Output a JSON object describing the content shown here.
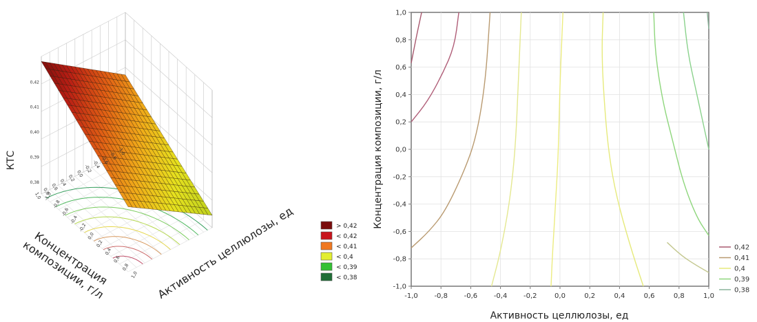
{
  "chart_data": [
    {
      "type": "surface",
      "zlabel": "КТС",
      "xlabel": "Активность целлюлозы, ед",
      "ylabel": "Концентрация композиции, г/л",
      "ztick_labels": [
        "0,42",
        "0,41",
        "0,40",
        "0,39",
        "0,38"
      ],
      "xtick_labels": [
        "-1,0",
        "-0,8",
        "-0,6",
        "-0,4",
        "-0,2",
        "0,0",
        "0,2",
        "0,4",
        "0,6",
        "0,8",
        "1,0"
      ],
      "ytick_labels": [
        "-1,0",
        "-0,8",
        "-0,6",
        "-0,4",
        "-0,2",
        "0,0",
        "0,2",
        "0,4",
        "0,6",
        "0,8",
        "1,0"
      ],
      "xlim": [
        -1,
        1
      ],
      "ylim": [
        -1,
        1
      ],
      "zlim": [
        0.375,
        0.43
      ],
      "corner_values": {
        "x_min_y_max": 0.428,
        "x_max_y_max": 0.401,
        "x_min_y_min": 0.405,
        "x_max_y_min": 0.38
      },
      "legend": {
        "placement": "right of surface plot",
        "entries": [
          {
            "label": "> 0,42",
            "color": "#7a0c0c"
          },
          {
            "label": "< 0,42",
            "color": "#c8141c"
          },
          {
            "label": "< 0,41",
            "color": "#f07820"
          },
          {
            "label": "< 0,4",
            "color": "#e2ee30"
          },
          {
            "label": "< 0,39",
            "color": "#33c133"
          },
          {
            "label": "< 0,38",
            "color": "#1f6e36"
          }
        ]
      }
    },
    {
      "type": "contour",
      "xlabel": "Активность целлюлозы, ед",
      "ylabel": "Концентрация композиции, г/л",
      "xlim": [
        -1,
        1
      ],
      "ylim": [
        -1,
        1
      ],
      "xticks": [
        "-1,0",
        "-0,8",
        "-0,6",
        "-0,4",
        "-0,2",
        "0,0",
        "0,2",
        "0,4",
        "0,6",
        "0,8",
        "1,0"
      ],
      "yticks": [
        "1,0",
        "0,8",
        "0,6",
        "0,4",
        "0,2",
        "0,0",
        "-0,2",
        "-0,4",
        "-0,6",
        "-0,8",
        "-1,0"
      ],
      "grid": true,
      "legend_placement": "right-bottom",
      "series": [
        {
          "name": "0,42",
          "color": "#a8586e",
          "points": [
            [
              -0.93,
              1.0
            ],
            [
              -0.96,
              0.85
            ],
            [
              -1.0,
              0.63
            ]
          ]
        },
        {
          "name": "0,42",
          "color": "#b05e78",
          "points": [
            [
              -0.68,
              1.0
            ],
            [
              -0.71,
              0.75
            ],
            [
              -0.79,
              0.55
            ],
            [
              -0.89,
              0.35
            ],
            [
              -1.0,
              0.2
            ]
          ]
        },
        {
          "name": "0,41",
          "color": "#b99a70",
          "points": [
            [
              -0.47,
              1.0
            ],
            [
              -0.5,
              0.5
            ],
            [
              -0.56,
              0.1
            ],
            [
              -0.64,
              -0.15
            ],
            [
              -0.77,
              -0.45
            ],
            [
              -0.88,
              -0.6
            ],
            [
              -1.0,
              -0.72
            ]
          ]
        },
        {
          "name": "0,4",
          "color": "#e4e890",
          "points": [
            [
              -0.26,
              1.0
            ],
            [
              -0.28,
              0.5
            ],
            [
              -0.3,
              0.0
            ],
            [
              -0.34,
              -0.4
            ],
            [
              -0.4,
              -0.75
            ],
            [
              -0.46,
              -1.0
            ]
          ]
        },
        {
          "name": "0,4",
          "color": "#ecec80",
          "points": [
            [
              0.02,
              1.0
            ],
            [
              0.0,
              0.5
            ],
            [
              -0.01,
              0.0
            ],
            [
              -0.03,
              -0.4
            ],
            [
              -0.05,
              -0.75
            ],
            [
              -0.06,
              -1.0
            ]
          ]
        },
        {
          "name": "0,4",
          "color": "#e6ea7c",
          "points": [
            [
              0.29,
              1.0
            ],
            [
              0.28,
              0.7
            ],
            [
              0.3,
              0.3
            ],
            [
              0.33,
              -0.05
            ],
            [
              0.38,
              -0.35
            ],
            [
              0.47,
              -0.7
            ],
            [
              0.56,
              -1.0
            ]
          ]
        },
        {
          "name": "0,39",
          "color": "#8ed67c",
          "points": [
            [
              0.63,
              1.0
            ],
            [
              0.64,
              0.7
            ],
            [
              0.69,
              0.35
            ],
            [
              0.76,
              0.05
            ],
            [
              0.83,
              -0.25
            ],
            [
              0.92,
              -0.5
            ],
            [
              1.0,
              -0.63
            ]
          ]
        },
        {
          "name": "0,39",
          "color": "#8ad28c",
          "points": [
            [
              0.83,
              1.0
            ],
            [
              0.86,
              0.7
            ],
            [
              0.91,
              0.45
            ],
            [
              0.96,
              0.2
            ],
            [
              1.0,
              0.0
            ]
          ]
        },
        {
          "name": "0,38",
          "color": "#8ab49a",
          "points": [
            [
              0.99,
              1.0
            ],
            [
              1.0,
              0.88
            ]
          ]
        }
      ],
      "extra_curve": {
        "color": "#c4c890",
        "points": [
          [
            0.72,
            -0.68
          ],
          [
            0.82,
            -0.78
          ],
          [
            0.92,
            -0.85
          ],
          [
            1.0,
            -0.9
          ]
        ]
      },
      "legend": [
        {
          "label": "0,42",
          "color": "#a8586e"
        },
        {
          "label": "0,41",
          "color": "#b99a70"
        },
        {
          "label": "0,4",
          "color": "#e6ea7c"
        },
        {
          "label": "0,39",
          "color": "#8ed67c"
        },
        {
          "label": "0,38",
          "color": "#8ab49a"
        }
      ]
    }
  ]
}
